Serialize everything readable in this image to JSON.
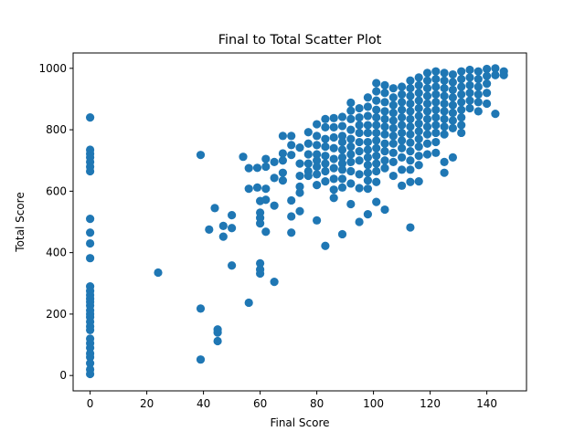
{
  "chart_data": {
    "type": "scatter",
    "title": "Final to Total Scatter Plot",
    "xlabel": "Final Score",
    "ylabel": "Total Score",
    "xlim": [
      -6,
      154
    ],
    "ylim": [
      -50,
      1050
    ],
    "xticks": [
      0,
      20,
      40,
      60,
      80,
      100,
      120,
      140
    ],
    "yticks": [
      0,
      200,
      400,
      600,
      800,
      1000
    ],
    "grid": false,
    "legend": "none",
    "point_color": "#1f77b4",
    "points": [
      [
        0,
        840
      ],
      [
        0,
        735
      ],
      [
        0,
        722
      ],
      [
        0,
        710
      ],
      [
        0,
        695
      ],
      [
        0,
        680
      ],
      [
        0,
        665
      ],
      [
        0,
        510
      ],
      [
        0,
        465
      ],
      [
        0,
        430
      ],
      [
        0,
        382
      ],
      [
        0,
        290
      ],
      [
        0,
        275
      ],
      [
        0,
        262
      ],
      [
        0,
        250
      ],
      [
        0,
        240
      ],
      [
        0,
        228
      ],
      [
        0,
        212
      ],
      [
        0,
        200
      ],
      [
        0,
        190
      ],
      [
        0,
        175
      ],
      [
        0,
        160
      ],
      [
        0,
        148
      ],
      [
        0,
        120
      ],
      [
        0,
        105
      ],
      [
        0,
        90
      ],
      [
        0,
        72
      ],
      [
        0,
        60
      ],
      [
        0,
        40
      ],
      [
        0,
        20
      ],
      [
        0,
        5
      ],
      [
        24,
        335
      ],
      [
        39,
        718
      ],
      [
        39,
        218
      ],
      [
        39,
        52
      ],
      [
        42,
        475
      ],
      [
        44,
        545
      ],
      [
        45,
        150
      ],
      [
        45,
        140
      ],
      [
        45,
        112
      ],
      [
        47,
        487
      ],
      [
        47,
        452
      ],
      [
        50,
        522
      ],
      [
        50,
        480
      ],
      [
        50,
        358
      ],
      [
        54,
        712
      ],
      [
        56,
        675
      ],
      [
        56,
        608
      ],
      [
        56,
        237
      ],
      [
        59,
        676
      ],
      [
        59,
        612
      ],
      [
        60,
        568
      ],
      [
        60,
        530
      ],
      [
        60,
        513
      ],
      [
        60,
        495
      ],
      [
        60,
        365
      ],
      [
        60,
        345
      ],
      [
        60,
        332
      ],
      [
        62,
        705
      ],
      [
        62,
        680
      ],
      [
        62,
        608
      ],
      [
        62,
        572
      ],
      [
        62,
        468
      ],
      [
        65,
        695
      ],
      [
        65,
        643
      ],
      [
        65,
        553
      ],
      [
        65,
        305
      ],
      [
        68,
        780
      ],
      [
        68,
        723
      ],
      [
        68,
        700
      ],
      [
        68,
        660
      ],
      [
        68,
        635
      ],
      [
        71,
        780
      ],
      [
        71,
        750
      ],
      [
        71,
        718
      ],
      [
        71,
        570
      ],
      [
        71,
        518
      ],
      [
        71,
        465
      ],
      [
        74,
        742
      ],
      [
        74,
        690
      ],
      [
        74,
        650
      ],
      [
        74,
        615
      ],
      [
        74,
        595
      ],
      [
        74,
        535
      ],
      [
        77,
        792
      ],
      [
        77,
        755
      ],
      [
        77,
        720
      ],
      [
        77,
        690
      ],
      [
        77,
        665
      ],
      [
        77,
        650
      ],
      [
        80,
        818
      ],
      [
        80,
        780
      ],
      [
        80,
        750
      ],
      [
        80,
        720
      ],
      [
        80,
        700
      ],
      [
        80,
        680
      ],
      [
        80,
        655
      ],
      [
        80,
        620
      ],
      [
        80,
        505
      ],
      [
        83,
        835
      ],
      [
        83,
        808
      ],
      [
        83,
        770
      ],
      [
        83,
        745
      ],
      [
        83,
        715
      ],
      [
        83,
        690
      ],
      [
        83,
        665
      ],
      [
        83,
        632
      ],
      [
        83,
        422
      ],
      [
        86,
        838
      ],
      [
        86,
        808
      ],
      [
        86,
        775
      ],
      [
        86,
        740
      ],
      [
        86,
        705
      ],
      [
        86,
        675
      ],
      [
        86,
        640
      ],
      [
        86,
        605
      ],
      [
        86,
        578
      ],
      [
        89,
        842
      ],
      [
        89,
        812
      ],
      [
        89,
        780
      ],
      [
        89,
        760
      ],
      [
        89,
        735
      ],
      [
        89,
        710
      ],
      [
        89,
        690
      ],
      [
        89,
        670
      ],
      [
        89,
        640
      ],
      [
        89,
        612
      ],
      [
        89,
        460
      ],
      [
        92,
        888
      ],
      [
        92,
        862
      ],
      [
        92,
        835
      ],
      [
        92,
        800
      ],
      [
        92,
        770
      ],
      [
        92,
        745
      ],
      [
        92,
        720
      ],
      [
        92,
        695
      ],
      [
        92,
        665
      ],
      [
        92,
        625
      ],
      [
        92,
        558
      ],
      [
        95,
        870
      ],
      [
        95,
        840
      ],
      [
        95,
        815
      ],
      [
        95,
        790
      ],
      [
        95,
        760
      ],
      [
        95,
        730
      ],
      [
        95,
        700
      ],
      [
        95,
        655
      ],
      [
        95,
        610
      ],
      [
        95,
        500
      ],
      [
        98,
        905
      ],
      [
        98,
        875
      ],
      [
        98,
        845
      ],
      [
        98,
        815
      ],
      [
        98,
        790
      ],
      [
        98,
        760
      ],
      [
        98,
        735
      ],
      [
        98,
        710
      ],
      [
        98,
        685
      ],
      [
        98,
        660
      ],
      [
        98,
        635
      ],
      [
        98,
        608
      ],
      [
        98,
        525
      ],
      [
        101,
        952
      ],
      [
        101,
        925
      ],
      [
        101,
        895
      ],
      [
        101,
        865
      ],
      [
        101,
        840
      ],
      [
        101,
        815
      ],
      [
        101,
        790
      ],
      [
        101,
        765
      ],
      [
        101,
        740
      ],
      [
        101,
        715
      ],
      [
        101,
        690
      ],
      [
        101,
        665
      ],
      [
        101,
        630
      ],
      [
        101,
        565
      ],
      [
        104,
        945
      ],
      [
        104,
        920
      ],
      [
        104,
        890
      ],
      [
        104,
        860
      ],
      [
        104,
        835
      ],
      [
        104,
        810
      ],
      [
        104,
        785
      ],
      [
        104,
        755
      ],
      [
        104,
        730
      ],
      [
        104,
        700
      ],
      [
        104,
        675
      ],
      [
        104,
        540
      ],
      [
        107,
        935
      ],
      [
        107,
        905
      ],
      [
        107,
        880
      ],
      [
        107,
        855
      ],
      [
        107,
        830
      ],
      [
        107,
        805
      ],
      [
        107,
        780
      ],
      [
        107,
        755
      ],
      [
        107,
        725
      ],
      [
        107,
        695
      ],
      [
        107,
        650
      ],
      [
        110,
        940
      ],
      [
        110,
        915
      ],
      [
        110,
        890
      ],
      [
        110,
        865
      ],
      [
        110,
        840
      ],
      [
        110,
        815
      ],
      [
        110,
        790
      ],
      [
        110,
        765
      ],
      [
        110,
        740
      ],
      [
        110,
        710
      ],
      [
        110,
        670
      ],
      [
        110,
        618
      ],
      [
        113,
        960
      ],
      [
        113,
        935
      ],
      [
        113,
        910
      ],
      [
        113,
        885
      ],
      [
        113,
        860
      ],
      [
        113,
        835
      ],
      [
        113,
        810
      ],
      [
        113,
        785
      ],
      [
        113,
        758
      ],
      [
        113,
        730
      ],
      [
        113,
        700
      ],
      [
        113,
        670
      ],
      [
        113,
        630
      ],
      [
        113,
        482
      ],
      [
        116,
        970
      ],
      [
        116,
        945
      ],
      [
        116,
        920
      ],
      [
        116,
        895
      ],
      [
        116,
        870
      ],
      [
        116,
        845
      ],
      [
        116,
        820
      ],
      [
        116,
        795
      ],
      [
        116,
        770
      ],
      [
        116,
        745
      ],
      [
        116,
        715
      ],
      [
        116,
        685
      ],
      [
        116,
        632
      ],
      [
        119,
        985
      ],
      [
        119,
        960
      ],
      [
        119,
        935
      ],
      [
        119,
        910
      ],
      [
        119,
        885
      ],
      [
        119,
        860
      ],
      [
        119,
        835
      ],
      [
        119,
        810
      ],
      [
        119,
        785
      ],
      [
        119,
        755
      ],
      [
        119,
        720
      ],
      [
        122,
        990
      ],
      [
        122,
        965
      ],
      [
        122,
        940
      ],
      [
        122,
        915
      ],
      [
        122,
        890
      ],
      [
        122,
        865
      ],
      [
        122,
        840
      ],
      [
        122,
        815
      ],
      [
        122,
        790
      ],
      [
        122,
        760
      ],
      [
        122,
        725
      ],
      [
        125,
        985
      ],
      [
        125,
        960
      ],
      [
        125,
        935
      ],
      [
        125,
        910
      ],
      [
        125,
        885
      ],
      [
        125,
        860
      ],
      [
        125,
        835
      ],
      [
        125,
        810
      ],
      [
        125,
        785
      ],
      [
        125,
        695
      ],
      [
        125,
        660
      ],
      [
        128,
        980
      ],
      [
        128,
        955
      ],
      [
        128,
        930
      ],
      [
        128,
        905
      ],
      [
        128,
        880
      ],
      [
        128,
        855
      ],
      [
        128,
        830
      ],
      [
        128,
        805
      ],
      [
        128,
        710
      ],
      [
        131,
        990
      ],
      [
        131,
        965
      ],
      [
        131,
        940
      ],
      [
        131,
        915
      ],
      [
        131,
        890
      ],
      [
        131,
        865
      ],
      [
        131,
        840
      ],
      [
        131,
        815
      ],
      [
        131,
        790
      ],
      [
        134,
        995
      ],
      [
        134,
        970
      ],
      [
        134,
        945
      ],
      [
        134,
        920
      ],
      [
        134,
        895
      ],
      [
        134,
        870
      ],
      [
        137,
        990
      ],
      [
        137,
        965
      ],
      [
        137,
        940
      ],
      [
        137,
        915
      ],
      [
        137,
        890
      ],
      [
        137,
        860
      ],
      [
        140,
        998
      ],
      [
        140,
        975
      ],
      [
        140,
        950
      ],
      [
        140,
        920
      ],
      [
        140,
        885
      ],
      [
        143,
        1000
      ],
      [
        143,
        978
      ],
      [
        143,
        852
      ],
      [
        146,
        990
      ],
      [
        146,
        978
      ]
    ]
  }
}
